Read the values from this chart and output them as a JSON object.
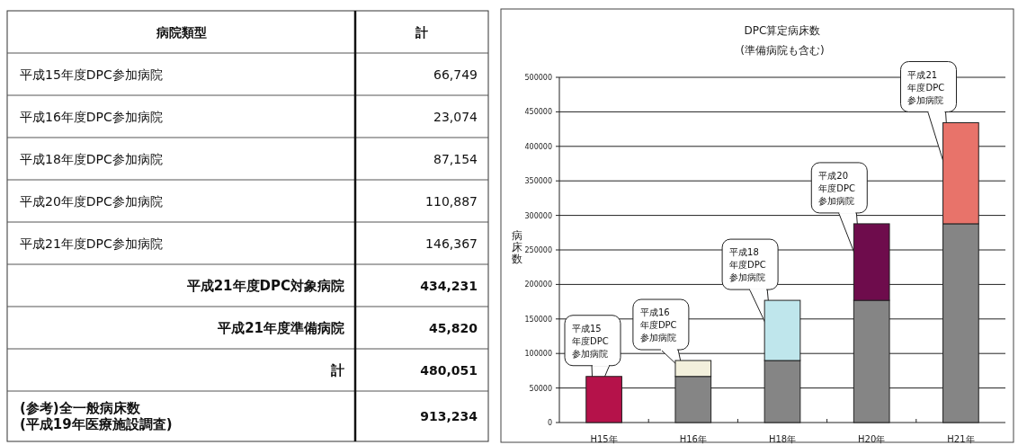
{
  "chart_data": [
    {
      "type": "other",
      "annotations": [
        "病院類型",
        "計",
        "平成15年度DPC参加病院",
        "66,749",
        "平成16年度DPC参加病院",
        "23,074",
        "平成18年度DPC参加病院",
        "87,154",
        "平成20年度DPC参加病院",
        "110,887",
        "平成21年度DPC参加病院",
        "146,367",
        "平成21年度DPC対象病院",
        "434,231",
        "平成21年度準備病院",
        "45,820",
        "計",
        "480,051",
        "(参考)全一般病床数\n(平成19年医療施設調査)",
        "913,234"
      ]
    },
    {
      "type": "bar",
      "title": "DPC算定病床数",
      "subtitle": "(準備病院も含む)",
      "ylabel": "病床数",
      "stacked": true,
      "categories": [
        "H15年",
        "H16年",
        "H18年",
        "H20年",
        "H21年"
      ],
      "series": [
        {
          "color": "#858585",
          "values": [
            null,
            66749,
            89823,
            176977,
            287864
          ]
        },
        {
          "colors": [
            "#b5124a",
            "#f3f0dc",
            "#bfe6ec",
            "#6e0c4c",
            "#e8736a"
          ],
          "values": [
            66749,
            23074,
            87154,
            110887,
            146367
          ]
        }
      ],
      "ylim": [
        0,
        500000
      ],
      "yticks": [
        0,
        50000,
        100000,
        150000,
        200000,
        250000,
        300000,
        350000,
        400000,
        450000,
        500000
      ],
      "grid": "y",
      "annotations": [
        "平成15年度DPC参加病院",
        "平成16年度DPC参加病院",
        "平成18年度DPC参加病院",
        "平成20年度DPC参加病院",
        "平成21年度DPC参加病院"
      ]
    }
  ]
}
